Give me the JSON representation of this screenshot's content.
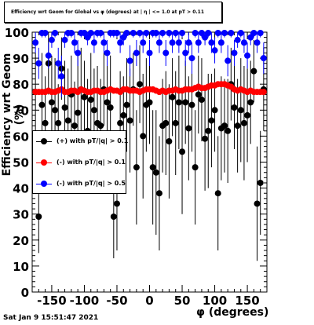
{
  "title": "Efficiency wrt Geom for Global vs φ (degrees) at | η | <= 1.0 at pT > 0.11",
  "footer": "Sat Jan  9 15:51:47 2021",
  "chart_data": {
    "type": "scatter",
    "xlabel": "φ (degrees)",
    "ylabel": "Efficiency wrt Geom (%)",
    "xlim": [
      -180,
      180
    ],
    "ylim": [
      0,
      100
    ],
    "xticks": [
      -150,
      -100,
      -50,
      0,
      50,
      100,
      150
    ],
    "yticks": [
      0,
      10,
      20,
      30,
      40,
      50,
      60,
      70,
      80,
      90,
      100
    ],
    "legend_position": "middle-left",
    "series": [
      {
        "name": "(+) with pT/|q| > 0.1",
        "color": "#000000",
        "x": [
          -175,
          -170,
          -165,
          -160,
          -155,
          -150,
          -145,
          -140,
          -135,
          -130,
          -125,
          -120,
          -115,
          -110,
          -105,
          -100,
          -95,
          -90,
          -85,
          -80,
          -75,
          -70,
          -65,
          -60,
          -55,
          -50,
          -45,
          -40,
          -35,
          -30,
          -25,
          -20,
          -15,
          -10,
          -5,
          0,
          5,
          10,
          15,
          20,
          25,
          30,
          35,
          40,
          45,
          50,
          55,
          60,
          65,
          70,
          75,
          80,
          85,
          90,
          95,
          100,
          105,
          110,
          115,
          120,
          125,
          130,
          135,
          140,
          145,
          150,
          155,
          160,
          165,
          170,
          175
        ],
        "y": [
          77,
          29,
          72,
          65,
          88,
          73,
          70,
          65,
          86,
          71,
          66,
          76,
          64,
          69,
          78,
          75,
          62,
          74,
          70,
          65,
          64,
          78,
          73,
          71,
          29,
          34,
          65,
          68,
          72,
          66,
          78,
          48,
          80,
          60,
          72,
          73,
          48,
          46,
          38,
          64,
          65,
          58,
          75,
          65,
          73,
          54,
          73,
          63,
          72,
          48,
          76,
          74,
          59,
          62,
          66,
          70,
          38,
          63,
          64,
          62,
          80,
          71,
          64,
          70,
          65,
          68,
          73,
          85,
          34,
          42,
          78
        ],
        "err": [
          15,
          14,
          20,
          18,
          12,
          18,
          20,
          15,
          12,
          18,
          20,
          15,
          17,
          22,
          16,
          14,
          20,
          18,
          16,
          22,
          18,
          14,
          16,
          20,
          16,
          18,
          20,
          15,
          18,
          20,
          14,
          22,
          15,
          24,
          18,
          16,
          22,
          24,
          22,
          18,
          20,
          22,
          15,
          20,
          18,
          24,
          16,
          20,
          18,
          22,
          15,
          16,
          20,
          22,
          18,
          16,
          22,
          20,
          18,
          20,
          14,
          16,
          18,
          20,
          22,
          18,
          16,
          12,
          22,
          20,
          16
        ]
      },
      {
        "name": "(-) with pT/|q| > 0.1",
        "color": "#ff0000",
        "x": [
          -175,
          -170,
          -165,
          -160,
          -155,
          -150,
          -145,
          -140,
          -135,
          -130,
          -125,
          -120,
          -115,
          -110,
          -105,
          -100,
          -95,
          -90,
          -85,
          -80,
          -75,
          -70,
          -65,
          -60,
          -55,
          -50,
          -45,
          -40,
          -35,
          -30,
          -25,
          -20,
          -15,
          -10,
          -5,
          0,
          5,
          10,
          15,
          20,
          25,
          30,
          35,
          40,
          45,
          50,
          55,
          60,
          65,
          70,
          75,
          80,
          85,
          90,
          95,
          100,
          105,
          110,
          115,
          120,
          125,
          130,
          135,
          140,
          145,
          150,
          155,
          160,
          165,
          170,
          175
        ],
        "y": [
          77,
          77,
          77,
          77,
          77.5,
          77,
          77,
          77.5,
          78,
          77,
          77,
          77.5,
          77.5,
          77,
          78,
          77.5,
          77,
          77,
          77.5,
          77.5,
          77,
          77,
          77.5,
          78,
          77.5,
          77.5,
          77,
          78,
          78,
          77.5,
          77.5,
          77.5,
          77,
          77.5,
          78,
          78,
          78,
          77.5,
          77,
          77.5,
          77,
          77.5,
          77.5,
          78,
          77.5,
          77.5,
          78,
          78,
          78,
          78.5,
          79,
          78.5,
          78.5,
          79,
          79.5,
          79.5,
          80,
          80,
          80,
          79.5,
          79,
          78,
          77.5,
          78,
          77.5,
          77,
          77.5,
          77,
          77,
          77,
          77
        ]
      },
      {
        "name": "(-) with pT/|q| > 0.5",
        "color": "#0000ff",
        "x": [
          -175,
          -170,
          -165,
          -160,
          -155,
          -150,
          -145,
          -140,
          -135,
          -130,
          -125,
          -120,
          -115,
          -110,
          -105,
          -100,
          -95,
          -90,
          -85,
          -80,
          -75,
          -70,
          -65,
          -60,
          -55,
          -50,
          -45,
          -40,
          -35,
          -30,
          -25,
          -20,
          -15,
          -10,
          -5,
          0,
          5,
          10,
          15,
          20,
          25,
          30,
          35,
          40,
          45,
          50,
          55,
          60,
          65,
          70,
          75,
          80,
          85,
          90,
          95,
          100,
          105,
          110,
          115,
          120,
          125,
          130,
          135,
          140,
          145,
          150,
          155,
          160,
          165,
          170,
          175
        ],
        "y": [
          96,
          88,
          100,
          100,
          91,
          97,
          100,
          88,
          83,
          97,
          100,
          100,
          96,
          92,
          100,
          100,
          98,
          100,
          96,
          100,
          100,
          96,
          92,
          100,
          100,
          100,
          96,
          98,
          100,
          89,
          100,
          92,
          100,
          96,
          100,
          92,
          100,
          100,
          96,
          100,
          92,
          100,
          96,
          100,
          96,
          100,
          92,
          96,
          90,
          100,
          96,
          100,
          98,
          100,
          96,
          93,
          100,
          96,
          100,
          89,
          100,
          92,
          97,
          100,
          96,
          91,
          98,
          100,
          96,
          100,
          90
        ],
        "err": [
          4,
          6,
          2,
          2,
          5,
          3,
          2,
          6,
          8,
          3,
          2,
          2,
          4,
          5,
          2,
          2,
          3,
          2,
          4,
          2,
          2,
          4,
          5,
          2,
          2,
          2,
          4,
          3,
          2,
          6,
          2,
          5,
          2,
          4,
          2,
          5,
          2,
          2,
          4,
          2,
          5,
          2,
          4,
          2,
          4,
          2,
          5,
          4,
          6,
          2,
          4,
          2,
          3,
          2,
          4,
          5,
          2,
          4,
          2,
          6,
          2,
          5,
          3,
          2,
          4,
          5,
          3,
          2,
          4,
          2,
          6
        ]
      }
    ]
  }
}
